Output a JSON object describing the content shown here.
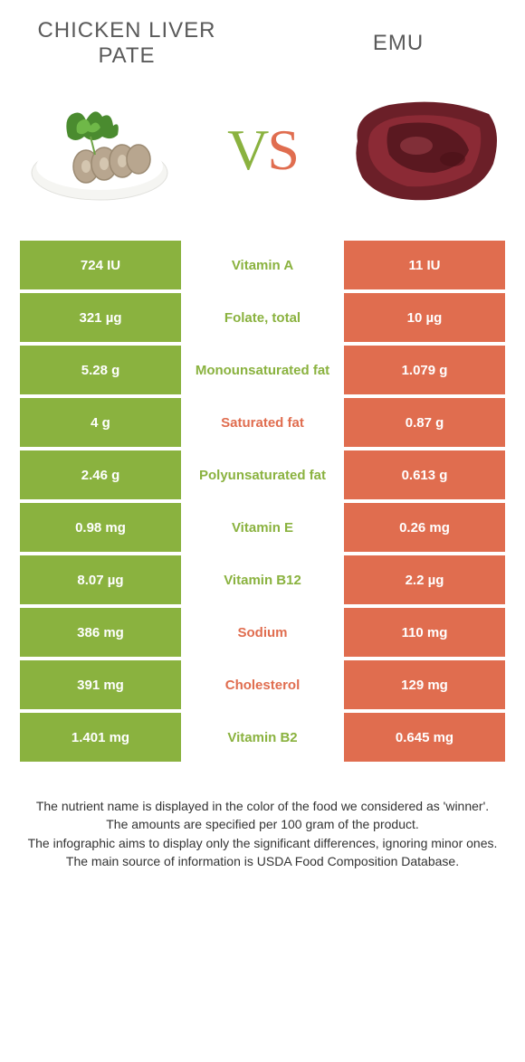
{
  "header": {
    "left_title": "CHICKEN LIVER PATE",
    "right_title": "EMU",
    "vs_v": "V",
    "vs_s": "S"
  },
  "colors": {
    "green": "#8ab23f",
    "orange": "#e06d4f",
    "white": "#ffffff",
    "text": "#333333"
  },
  "rows": [
    {
      "left": "724 IU",
      "label": "Vitamin A",
      "right": "11 IU",
      "winner": "green"
    },
    {
      "left": "321 µg",
      "label": "Folate, total",
      "right": "10 µg",
      "winner": "green"
    },
    {
      "left": "5.28 g",
      "label": "Monounsaturated fat",
      "right": "1.079 g",
      "winner": "green"
    },
    {
      "left": "4 g",
      "label": "Saturated fat",
      "right": "0.87 g",
      "winner": "orange"
    },
    {
      "left": "2.46 g",
      "label": "Polyunsaturated fat",
      "right": "0.613 g",
      "winner": "green"
    },
    {
      "left": "0.98 mg",
      "label": "Vitamin E",
      "right": "0.26 mg",
      "winner": "green"
    },
    {
      "left": "8.07 µg",
      "label": "Vitamin B12",
      "right": "2.2 µg",
      "winner": "green"
    },
    {
      "left": "386 mg",
      "label": "Sodium",
      "right": "110 mg",
      "winner": "orange"
    },
    {
      "left": "391 mg",
      "label": "Cholesterol",
      "right": "129 mg",
      "winner": "orange"
    },
    {
      "left": "1.401 mg",
      "label": "Vitamin B2",
      "right": "0.645 mg",
      "winner": "green"
    }
  ],
  "footer": {
    "line1": "The nutrient name is displayed in the color of the food we considered as 'winner'.",
    "line2": "The amounts are specified per 100 gram of the product.",
    "line3": "The infographic aims to display only the significant differences, ignoring minor ones.",
    "line4": "The main source of information is USDA Food Composition Database."
  }
}
